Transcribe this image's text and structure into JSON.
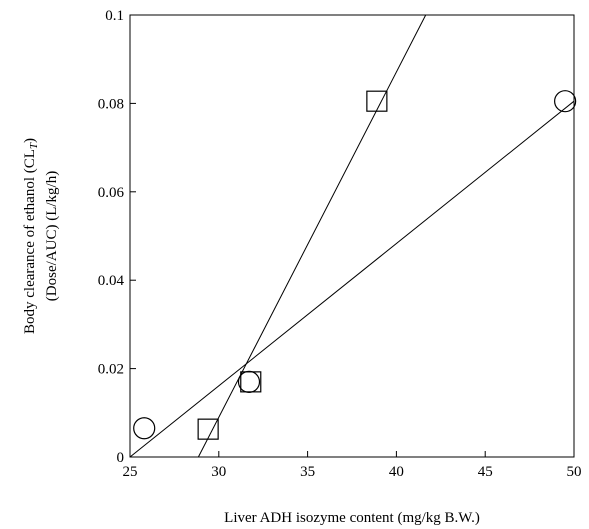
{
  "chart_data": {
    "type": "scatter",
    "xlabel": "Liver ADH isozyme content (mg/kg B.W.)",
    "ylabel_line1": "Body clearance of ethanol (CL",
    "ylabel_subscript": "T",
    "ylabel_line1_end": ")",
    "ylabel_line2": "(Dose/AUC) (L/kg/h)",
    "xlim": [
      25,
      50
    ],
    "ylim": [
      0,
      0.1
    ],
    "x_ticks": [
      "25",
      "30",
      "35",
      "40",
      "45",
      "50"
    ],
    "y_ticks": [
      "0",
      "0.02",
      "0.04",
      "0.06",
      "0.08",
      "0.1"
    ],
    "grid": false,
    "series": [
      {
        "marker": "square",
        "points": [
          [
            29.4,
            0.0063
          ],
          [
            31.8,
            0.017
          ],
          [
            38.9,
            0.0805
          ]
        ],
        "fit": [
          [
            28.85,
            0.0
          ],
          [
            41.65,
            0.1
          ]
        ]
      },
      {
        "marker": "circle",
        "points": [
          [
            25.8,
            0.0065
          ],
          [
            31.7,
            0.017
          ],
          [
            49.5,
            0.0805
          ]
        ],
        "fit": [
          [
            25.0,
            0.0
          ],
          [
            50.0,
            0.0805
          ]
        ]
      }
    ]
  }
}
